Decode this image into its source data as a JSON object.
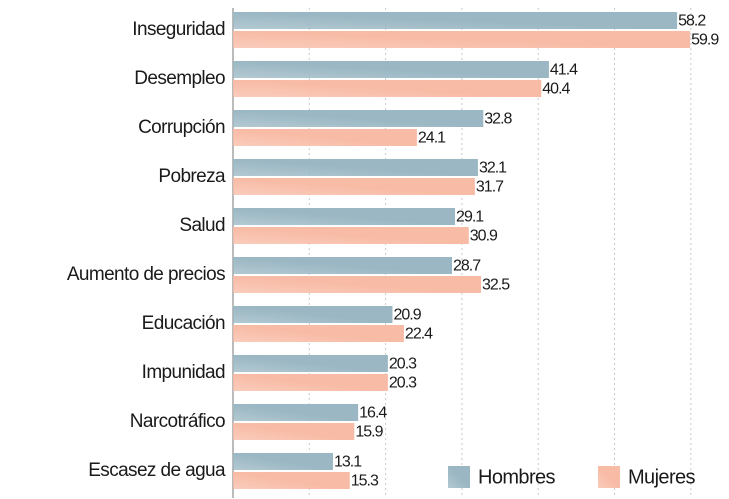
{
  "chart_data": {
    "type": "bar",
    "orientation": "horizontal",
    "categories": [
      "Inseguridad",
      "Desempleo",
      "Corrupción",
      "Pobreza",
      "Salud",
      "Aumento de precios",
      "Educación",
      "Impunidad",
      "Narcotráfico",
      "Escasez de agua"
    ],
    "series": [
      {
        "name": "Hombres",
        "color": "#9ab7c3",
        "values": [
          58.2,
          41.4,
          32.8,
          32.1,
          29.1,
          28.7,
          20.9,
          20.3,
          16.4,
          13.1
        ]
      },
      {
        "name": "Mujeres",
        "color": "#f8bba5",
        "values": [
          59.9,
          40.4,
          24.1,
          31.7,
          30.9,
          32.5,
          22.4,
          20.3,
          15.9,
          15.3
        ]
      }
    ],
    "xlim": [
      0,
      65
    ],
    "xticks": [
      10,
      20,
      30,
      40,
      50,
      60
    ],
    "grid": true,
    "legend": "bottom-right"
  }
}
